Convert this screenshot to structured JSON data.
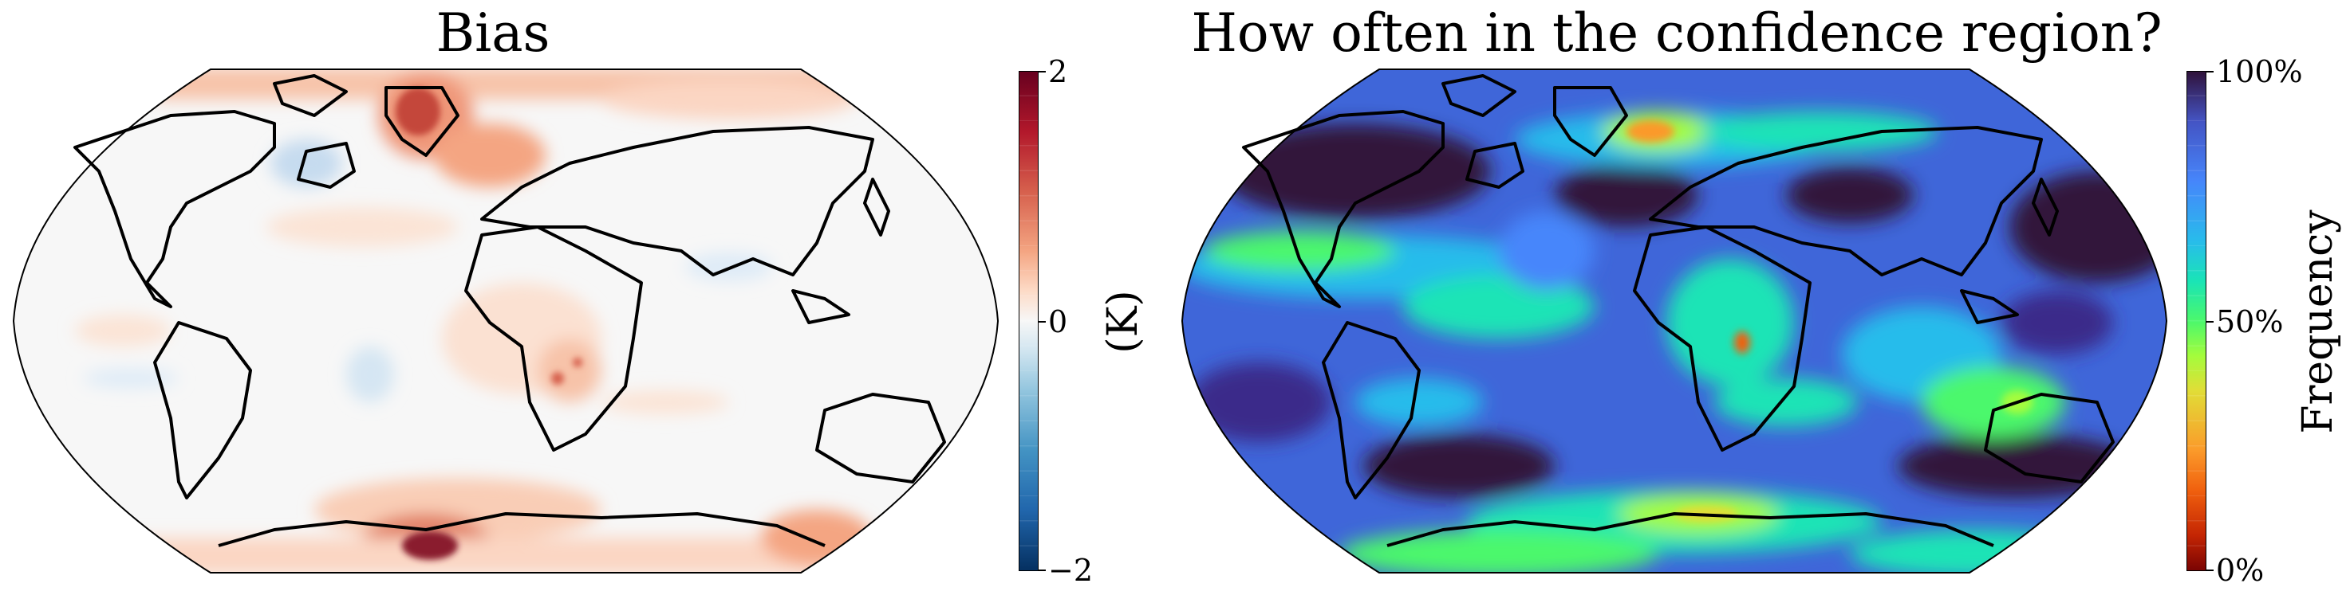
{
  "panels": {
    "left": {
      "title": "Bias",
      "colorbar": {
        "label": "(K)",
        "ticks": [
          "2",
          "0",
          "−2"
        ],
        "range": [
          -2,
          2
        ],
        "colormap": "RdBu_r",
        "colors": [
          "#053061",
          "#2166ac",
          "#4393c3",
          "#92c5de",
          "#d1e5f0",
          "#f7f7f7",
          "#fddbc7",
          "#f4a582",
          "#d6604d",
          "#b2182b",
          "#67001f"
        ]
      }
    },
    "right": {
      "title": "How often in the confidence region?",
      "colorbar": {
        "label": "Frequency",
        "ticks": [
          "100%",
          "50%",
          "0%"
        ],
        "range": [
          0,
          100
        ],
        "colormap": "turbo_r",
        "colors": [
          "#7a0403",
          "#f0600e",
          "#e1dd37",
          "#4bf86c",
          "#28bceb",
          "#4686fb",
          "#30123b"
        ]
      }
    }
  }
}
